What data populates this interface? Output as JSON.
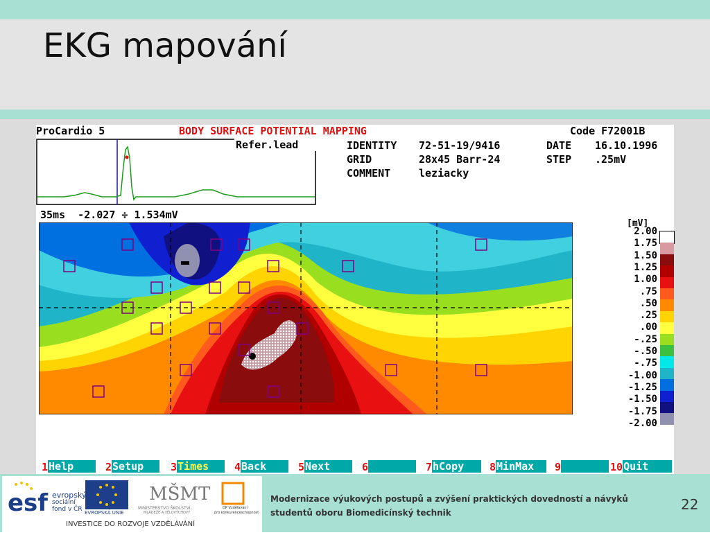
{
  "slide": {
    "title": "EKG mapování",
    "footer_line1": "Modernizace výukových postupů a zvýšení praktických dovedností a návyků",
    "footer_line2": "studentů oboru Biomedicínský technik",
    "page_number": "22"
  },
  "logos": {
    "esf_line1": "evropský",
    "esf_line2": "sociální",
    "esf_line3": "fond v ČR",
    "eu": "EVROPSKÁ UNIE",
    "msmt_line1": "MINISTERSTVO ŠKOLSTVÍ,",
    "msmt_line2": "MLÁDEŽE A TĚLOVÝCHOVY",
    "op_line1": "OP Vzdělávání",
    "op_line2": "pro konkurenceschopnost",
    "investice": "INVESTICE DO ROZVOJE VZDĚLÁVÁNÍ"
  },
  "screen": {
    "app_name": "ProCardio 5",
    "heading": "BODY SURFACE POTENTIAL MAPPING",
    "code": "Code F72001B",
    "ref_lead": "Refer.lead",
    "identity_label": "IDENTITY",
    "identity_value": "72-51-19/9416",
    "date_label": "DATE",
    "date_value": "16.10.1996",
    "grid_label": "GRID",
    "grid_value": "28x45 Barr-24",
    "step_label": "STEP",
    "step_value": ".25mV",
    "comment_label": "COMMENT",
    "comment_value": "leziacky",
    "readout": "35ms  -2.027 ÷ 1.534mV",
    "legend_unit": "[mV]",
    "legend_labels": [
      "2.00",
      "1.75",
      "1.50",
      "1.25",
      "1.00",
      ".75",
      ".50",
      ".25",
      ".00",
      "-.25",
      "-.50",
      "-.75",
      "-1.00",
      "-1.25",
      "-1.50",
      "-1.75",
      "-2.00"
    ],
    "legend_colors": [
      "#ffffff",
      "#d89aa0",
      "#8a0c0c",
      "#b00000",
      "#e81010",
      "#ff5a1e",
      "#ff8a00",
      "#ffd400",
      "#ffff40",
      "#9ade20",
      "#3cc040",
      "#00e8e8",
      "#20b4c8",
      "#0070e0",
      "#1020d0",
      "#101080",
      "#9090b0"
    ],
    "fkeys": [
      {
        "num": "1",
        "label": "Help"
      },
      {
        "num": "2",
        "label": "Setup"
      },
      {
        "num": "3",
        "label": "Times"
      },
      {
        "num": "4",
        "label": "Back"
      },
      {
        "num": "5",
        "label": "Next"
      },
      {
        "num": "6",
        "label": ""
      },
      {
        "num": "7",
        "label": "hCopy"
      },
      {
        "num": "8",
        "label": "MinMax"
      },
      {
        "num": "9",
        "label": ""
      },
      {
        "num": "10",
        "label": "Quit"
      }
    ]
  }
}
